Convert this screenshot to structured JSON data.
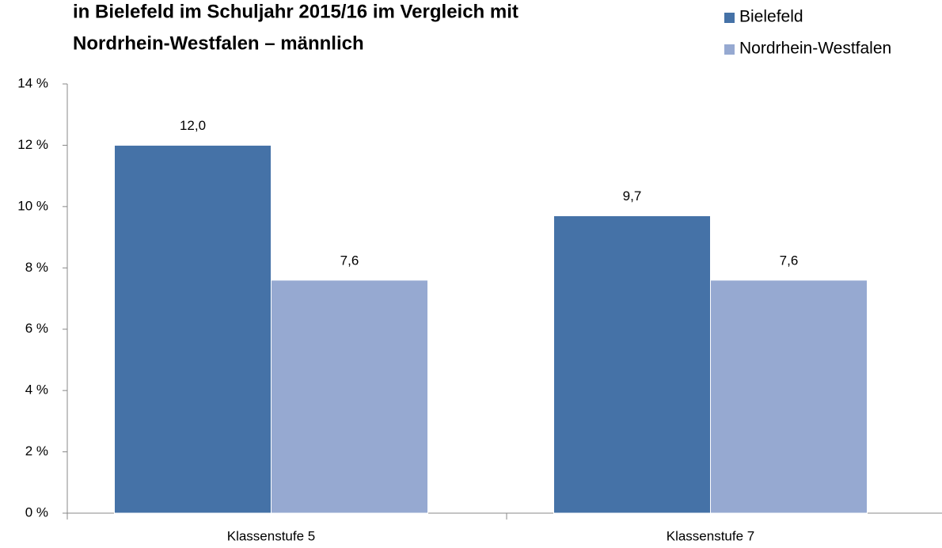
{
  "chart_data": {
    "type": "bar",
    "title": [
      "in Bielefeld im Schuljahr 2015/16  im Vergleich mit",
      "Nordrhein-Westfalen – männlich"
    ],
    "categories": [
      "Klassenstufe 5",
      "Klassenstufe 7"
    ],
    "series": [
      {
        "name": "Bielefeld",
        "color": "#4572a7",
        "values": [
          12.0,
          9.7
        ],
        "value_labels": [
          "12,0",
          "9,7"
        ]
      },
      {
        "name": "Nordrhein-Westfalen",
        "color": "#96a9d1",
        "values": [
          7.6,
          7.6
        ],
        "value_labels": [
          "7,6",
          "7,6"
        ]
      }
    ],
    "ylim": [
      0,
      14
    ],
    "yticks": [
      {
        "value": 0,
        "label": "0 %"
      },
      {
        "value": 2,
        "label": "2 %"
      },
      {
        "value": 4,
        "label": "4 %"
      },
      {
        "value": 6,
        "label": "6 %"
      },
      {
        "value": 8,
        "label": "8 %"
      },
      {
        "value": 10,
        "label": "10 %"
      },
      {
        "value": 12,
        "label": "12 %"
      },
      {
        "value": 14,
        "label": "14 %"
      }
    ],
    "legend": "top-right"
  }
}
